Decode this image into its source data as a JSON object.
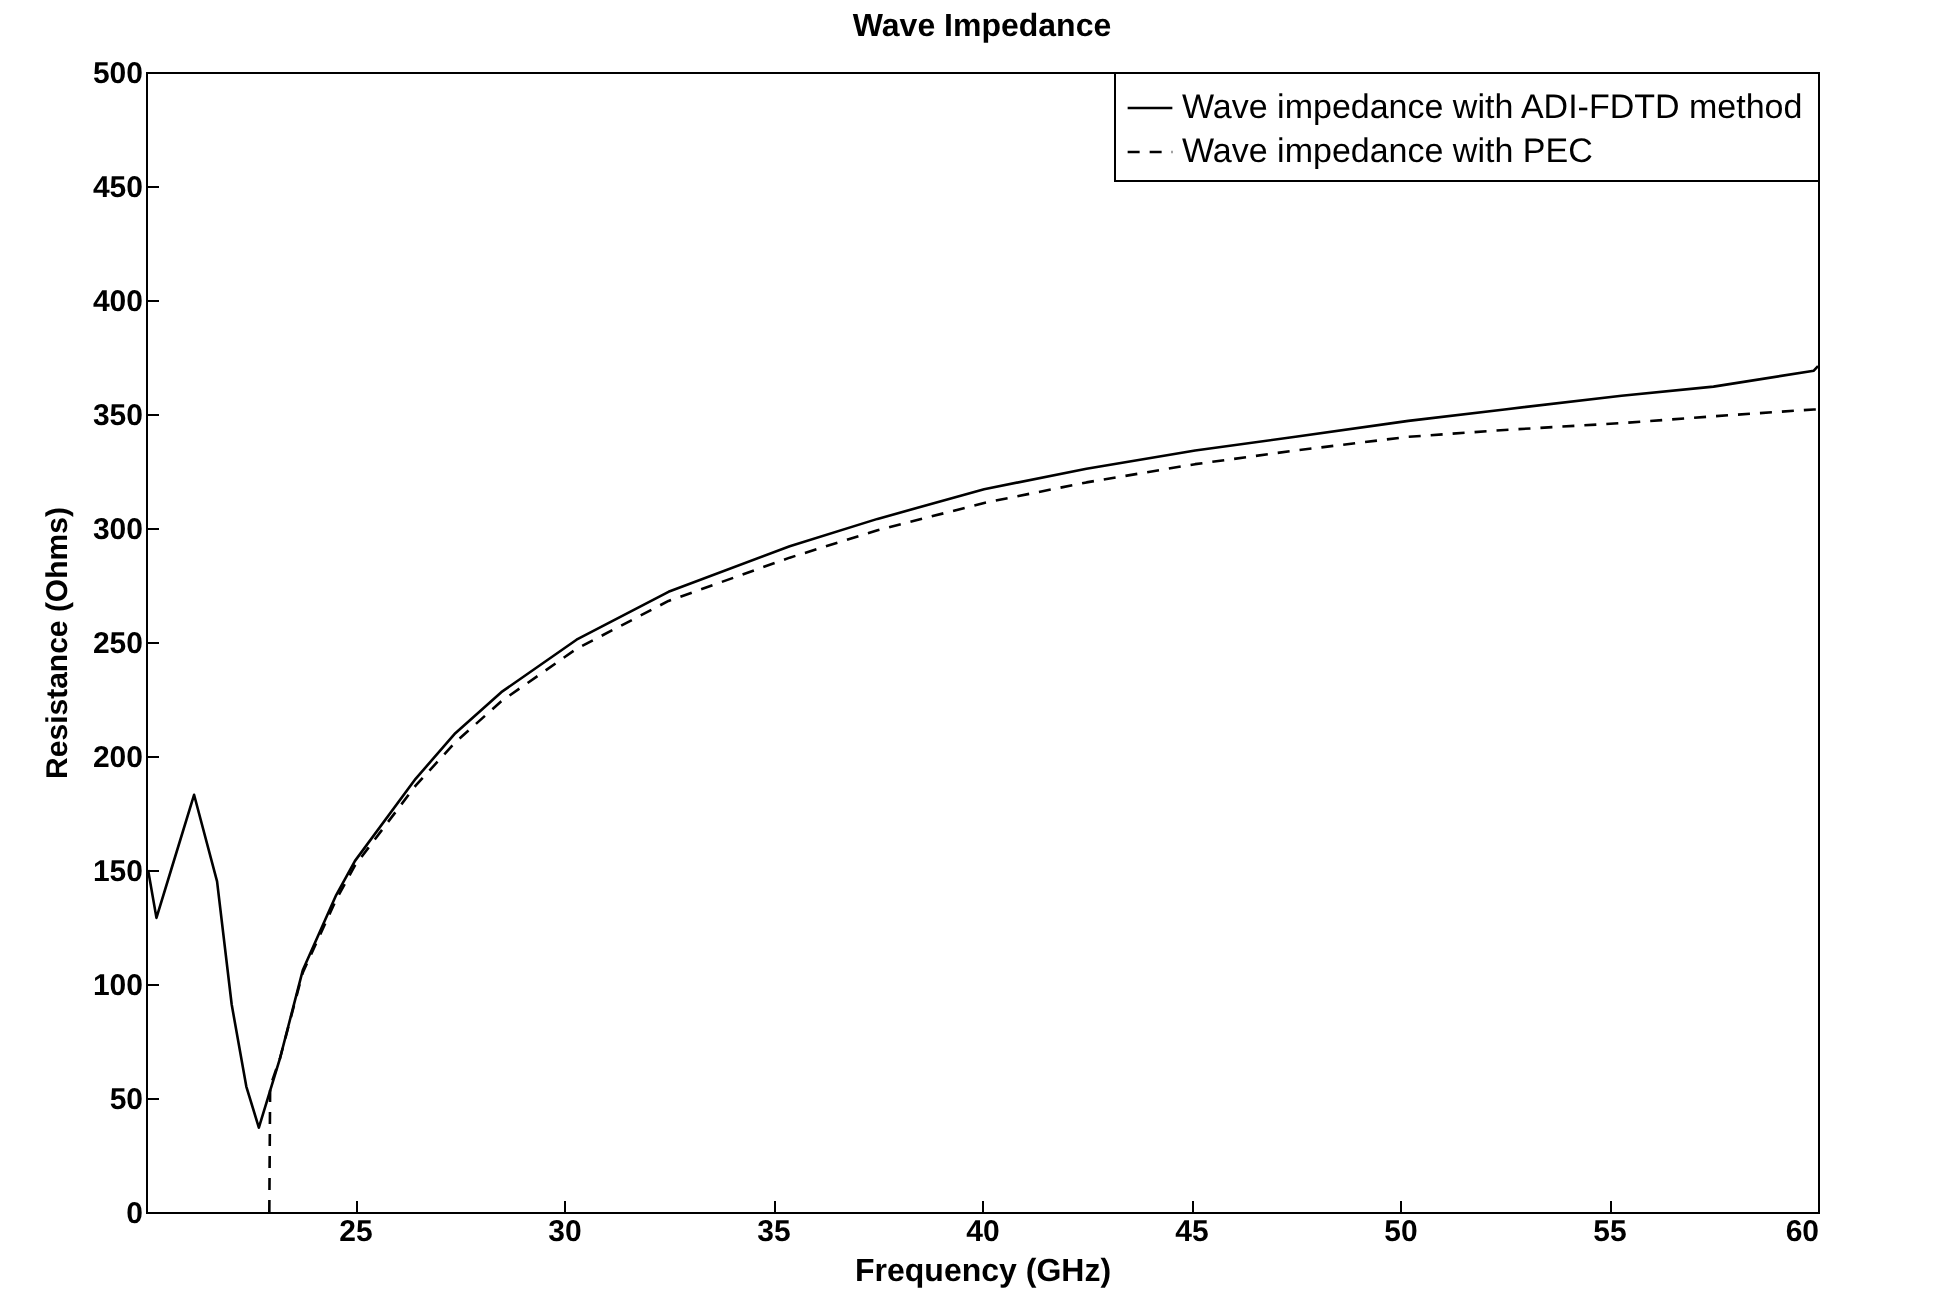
{
  "chart_data": {
    "type": "line",
    "title": "Wave Impedance",
    "xlabel": "Frequency (GHz)",
    "ylabel": "Resistance (Ohms)",
    "xlim": [
      20,
      60
    ],
    "xticks": [
      25,
      30,
      35,
      40,
      45,
      50,
      55,
      60
    ],
    "ylim": [
      0,
      500
    ],
    "yticks": [
      0,
      50,
      100,
      150,
      200,
      250,
      300,
      350,
      400,
      450,
      500
    ],
    "grid": false,
    "legend": "top right",
    "series": [
      {
        "name": "Wave impedance with ADI-FDTD method",
        "color": "#000000",
        "line_style": "solid",
        "x": [
          20.05,
          20.25,
          20.6,
          21.15,
          21.7,
          22.05,
          22.4,
          22.7,
          23.2,
          23.75,
          24.55,
          25,
          26.45,
          27.4,
          28.5,
          30.3,
          32.5,
          35.4,
          37.5,
          40.05,
          42.5,
          45.1,
          47.5,
          50.2,
          52.5,
          55.3,
          57.5,
          59.9,
          60
        ],
        "values": [
          150,
          129,
          150,
          183,
          145,
          91,
          55,
          37,
          67,
          106,
          139,
          154,
          190,
          210,
          228,
          251,
          272,
          292,
          304,
          317,
          326,
          334,
          340,
          347,
          352,
          358,
          362,
          369,
          371
        ]
      },
      {
        "name": "Wave impedance with PEC",
        "color": "#000000",
        "line_style": "dashed",
        "x": [
          22.95,
          22.97,
          23.2,
          23.75,
          24.55,
          25,
          26.45,
          27.4,
          28.5,
          30.3,
          32.5,
          35.4,
          37.5,
          40.05,
          42.5,
          45.1,
          47.5,
          50.2,
          52.5,
          55.3,
          57.5,
          59.9,
          60
        ],
        "values": [
          0,
          55,
          67,
          105,
          137,
          152,
          187,
          206,
          224,
          247,
          268,
          287,
          299,
          311,
          320,
          328,
          334,
          340,
          343,
          346,
          349,
          352,
          352
        ]
      }
    ]
  }
}
